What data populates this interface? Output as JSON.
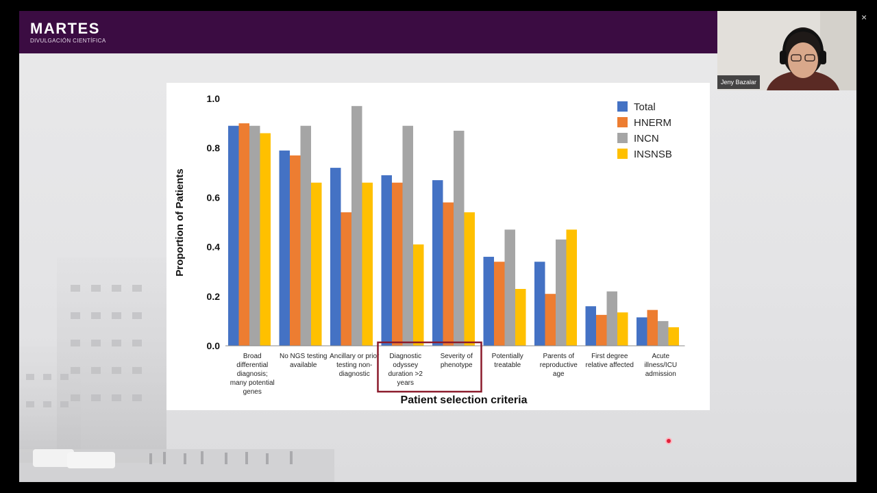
{
  "brand": {
    "name": "MARTES",
    "subtitle": "DIVULGACIÓN CIENTÍFICA"
  },
  "webcam": {
    "participant_name": "Jeny Bazalar",
    "close_glyph": "×"
  },
  "chart_data": {
    "type": "bar",
    "xlabel": "Patient selection criteria",
    "ylabel": "Proportion of Patients",
    "ylim": [
      0,
      1.0
    ],
    "yticks": [
      "0.0",
      "0.2",
      "0.4",
      "0.6",
      "0.8",
      "1.0"
    ],
    "legend_position": "top-right",
    "categories": [
      [
        "Broad",
        "differential",
        "diagnosis;",
        "many potential",
        "genes"
      ],
      [
        "No NGS testing",
        "available"
      ],
      [
        "Ancillary or prior",
        "testing non-",
        "diagnostic"
      ],
      [
        "Diagnostic",
        "odyssey",
        "duration >2",
        "years"
      ],
      [
        "Severity of",
        "phenotype"
      ],
      [
        "Potentially",
        "treatable"
      ],
      [
        "Parents of",
        "reproductive",
        "age"
      ],
      [
        "First degree",
        "relative affected"
      ],
      [
        "Acute",
        "illness/ICU",
        "admission"
      ]
    ],
    "highlighted_categories": [
      3,
      4
    ],
    "series": [
      {
        "name": "Total",
        "color": "#4472c4",
        "values": [
          0.89,
          0.79,
          0.72,
          0.69,
          0.67,
          0.36,
          0.34,
          0.16,
          0.115
        ]
      },
      {
        "name": "HNERM",
        "color": "#ed7d31",
        "values": [
          0.9,
          0.77,
          0.54,
          0.66,
          0.58,
          0.34,
          0.21,
          0.125,
          0.145
        ]
      },
      {
        "name": "INCN",
        "color": "#a5a5a5",
        "values": [
          0.89,
          0.89,
          0.97,
          0.89,
          0.87,
          0.47,
          0.43,
          0.22,
          0.1
        ]
      },
      {
        "name": "INSNSB",
        "color": "#ffc000",
        "values": [
          0.86,
          0.66,
          0.66,
          0.41,
          0.54,
          0.23,
          0.47,
          0.135,
          0.075
        ]
      }
    ]
  }
}
